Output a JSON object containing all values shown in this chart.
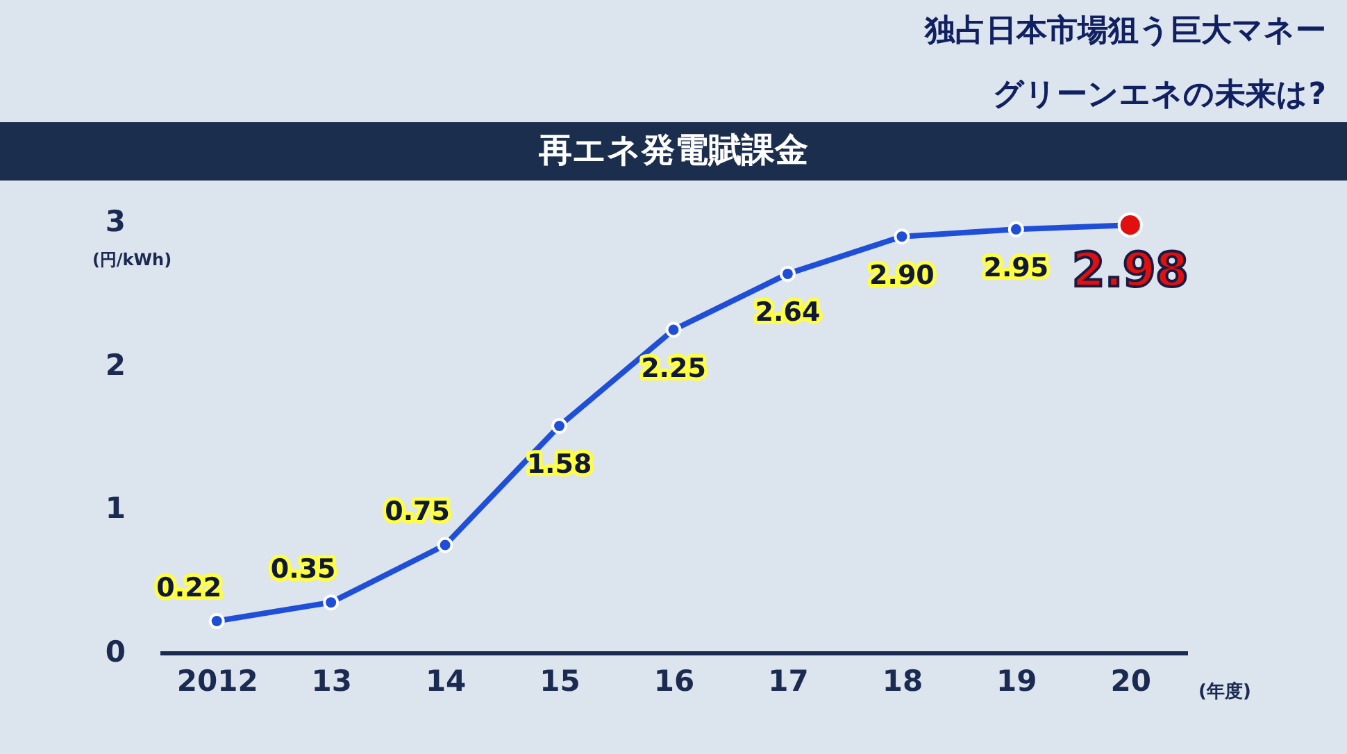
{
  "chart_data": {
    "type": "line",
    "title": "再エネ発電賦課金",
    "annotations": [
      "独占日本市場狙う巨大マネー",
      "グリーンエネの未来は?"
    ],
    "ylabel": "(円/kWh)",
    "xlabel": "(年度)",
    "categories": [
      "2012",
      "13",
      "14",
      "15",
      "16",
      "17",
      "18",
      "19",
      "20"
    ],
    "series": [
      {
        "color": "#1f4fd8",
        "values": [
          0.22,
          0.35,
          0.75,
          1.58,
          2.25,
          2.64,
          2.9,
          2.95,
          2.98
        ],
        "colors": [
          "#1f4fd8",
          "#1f4fd8",
          "#1f4fd8",
          "#1f4fd8",
          "#1f4fd8",
          "#1f4fd8",
          "#1f4fd8",
          "#1f4fd8",
          "#e01010"
        ],
        "value_labels": [
          "0.22",
          "0.35",
          "0.75",
          "1.58",
          "2.25",
          "2.64",
          "2.90",
          "2.95",
          "2.98"
        ]
      }
    ],
    "ylim": [
      0,
      3
    ],
    "yticks": [
      0,
      1,
      2,
      3
    ],
    "grid": false,
    "marker": "circle",
    "line_style": "solid"
  }
}
